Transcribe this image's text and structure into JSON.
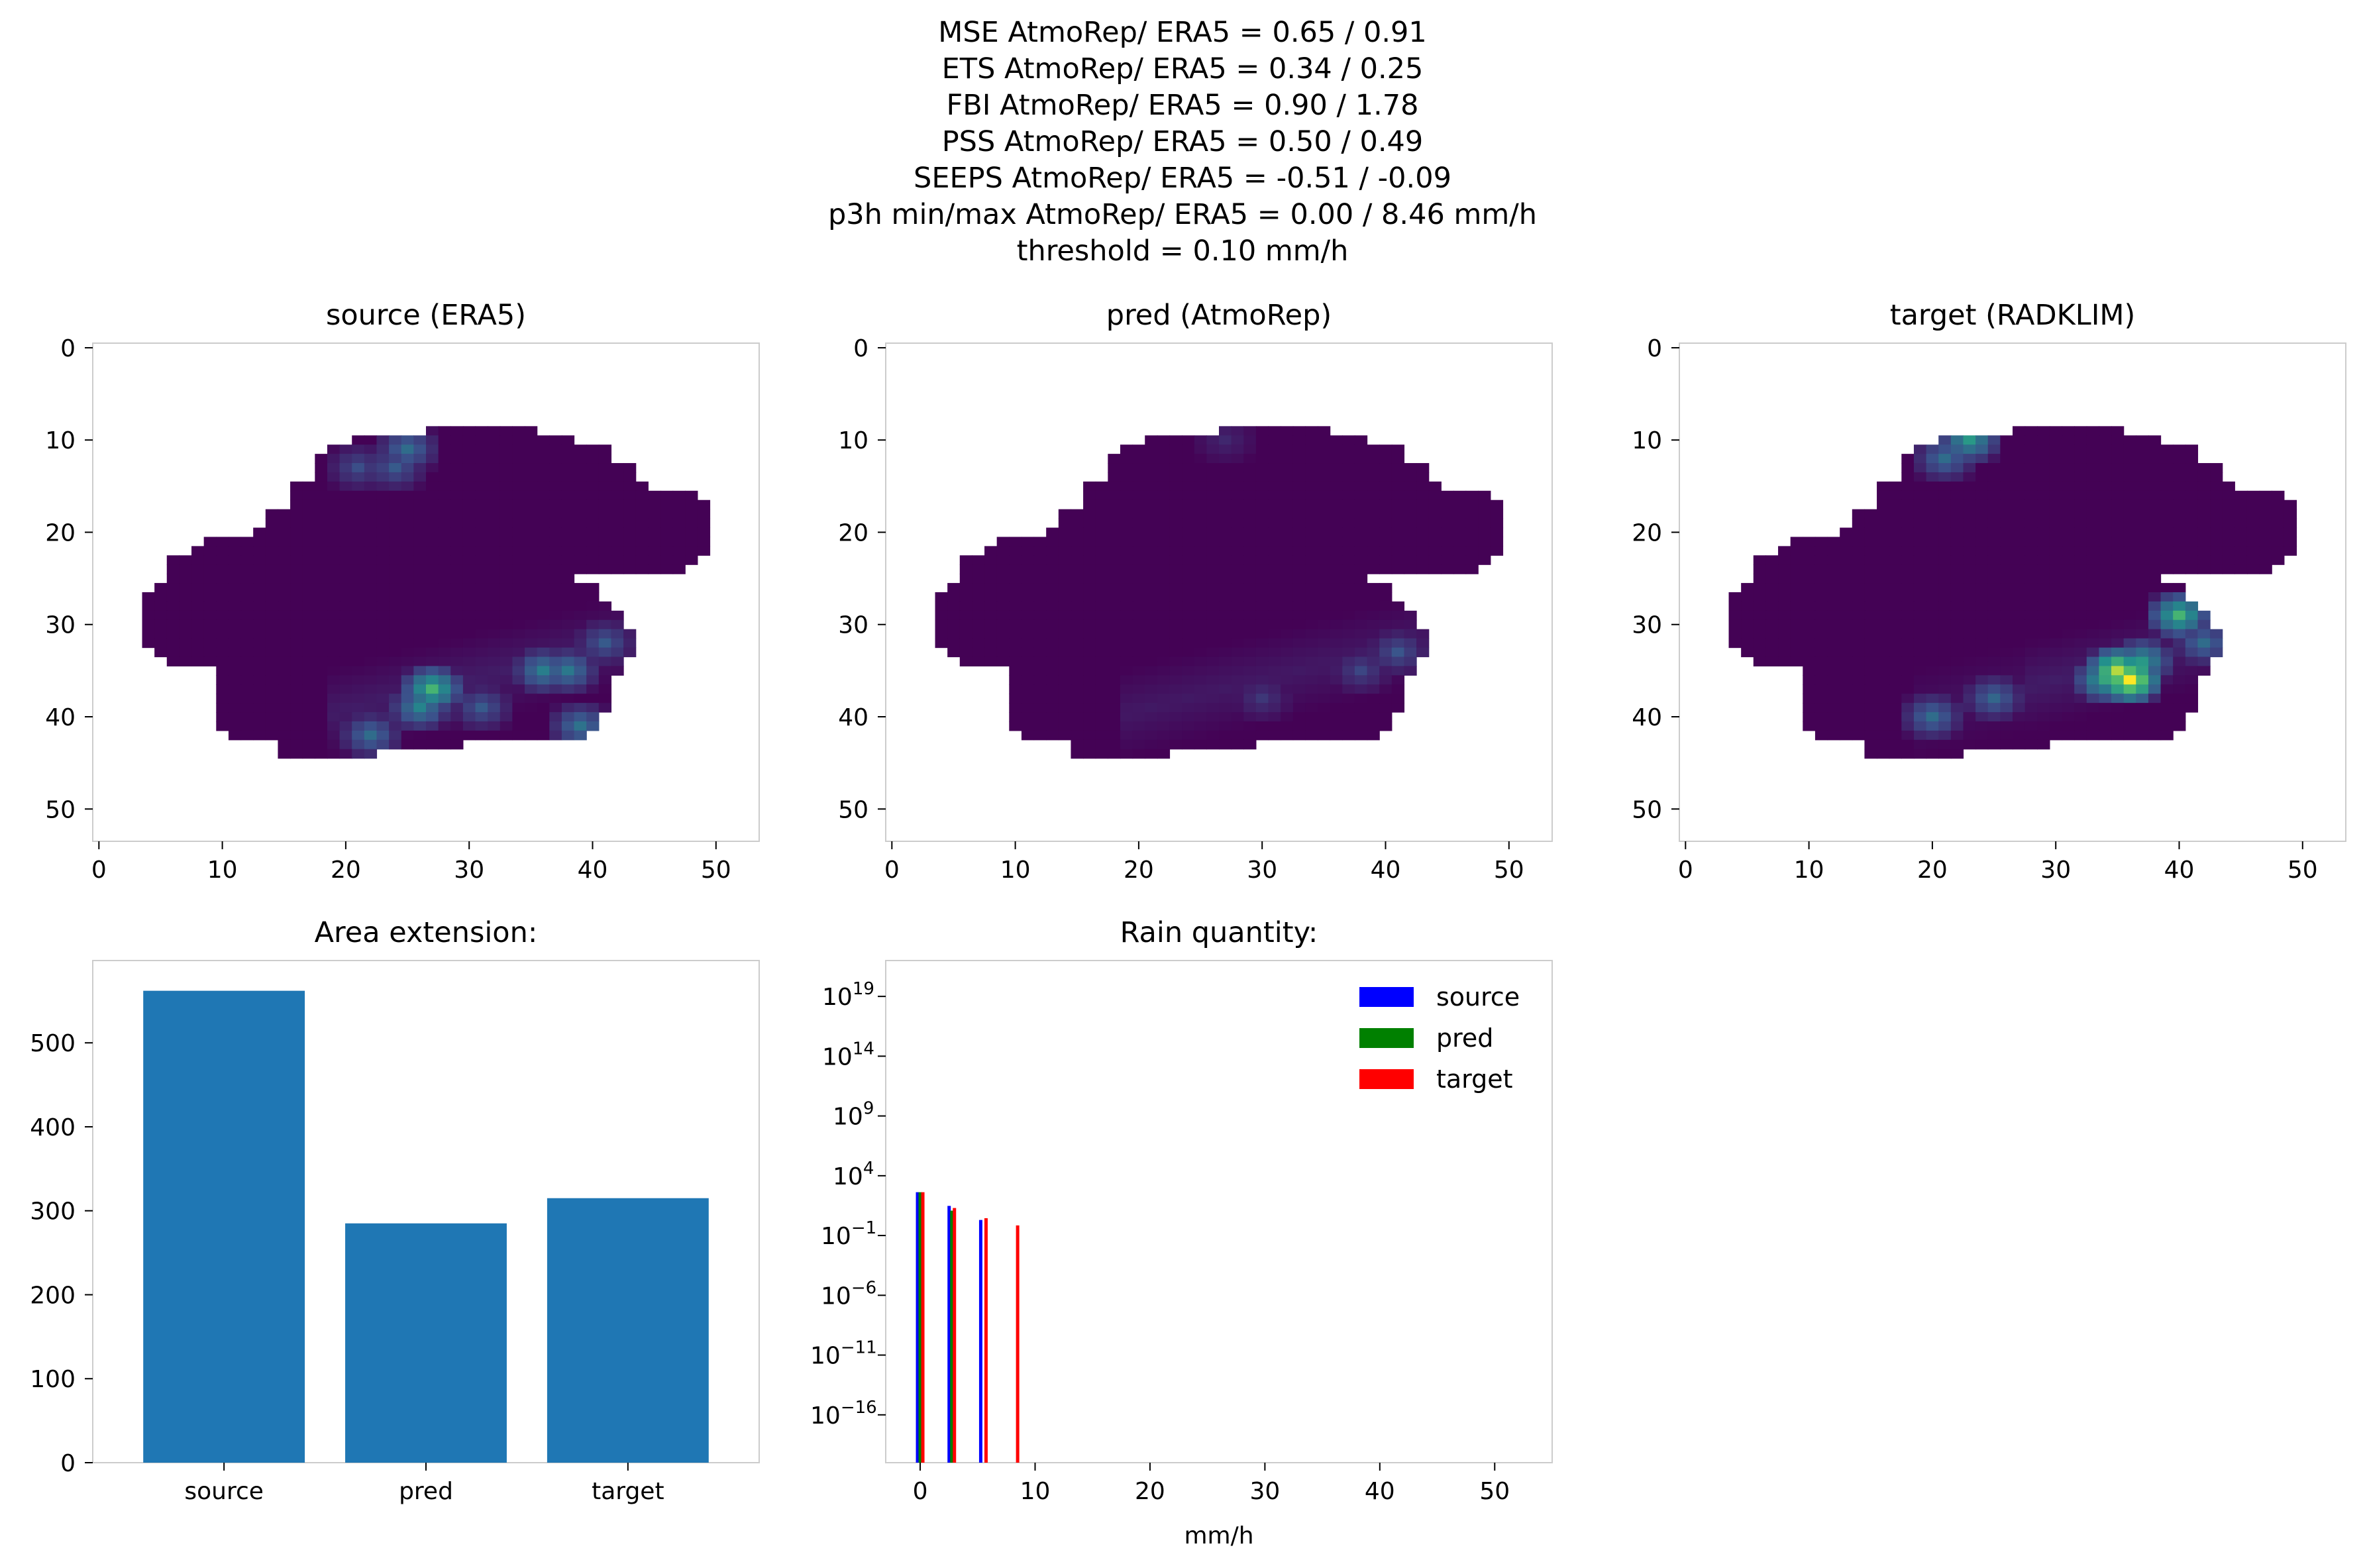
{
  "suptitle": [
    "MSE AtmoRep/ ERA5 = 0.65 / 0.91",
    "ETS AtmoRep/ ERA5 = 0.34 / 0.25",
    "FBI AtmoRep/ ERA5 = 0.90 / 1.78",
    "PSS AtmoRep/ ERA5 = 0.50 / 0.49",
    "SEEPS AtmoRep/ ERA5 = -0.51 / -0.09",
    "p3h min/max AtmoRep/ ERA5 = 0.00 / 8.46 mm/h",
    "threshold = 0.10 mm/h"
  ],
  "colors": {
    "background_cmap_low": "#440154",
    "cmap_mid1": "#3b528b",
    "cmap_mid2": "#21918c",
    "cmap_mid3": "#5ec962",
    "cmap_high": "#fde725",
    "bar": "#1f77b4",
    "source": "#0000ff",
    "pred": "#008000",
    "target": "#ff0000",
    "spine": "#cccccc"
  },
  "chart_data": [
    {
      "type": "heatmap",
      "title": "source (ERA5)",
      "xticks": [
        "0",
        "10",
        "20",
        "30",
        "40",
        "50"
      ],
      "yticks": [
        "0",
        "10",
        "20",
        "30",
        "40",
        "50"
      ],
      "xlim": [
        -0.5,
        53.5
      ],
      "ylim": [
        53.5,
        -0.5
      ],
      "max_value": 8.46,
      "hotspots": [
        {
          "x": 25,
          "y": 11,
          "v": 3.0
        },
        {
          "x": 24,
          "y": 13,
          "v": 2.4
        },
        {
          "x": 21,
          "y": 13,
          "v": 2.0
        },
        {
          "x": 36,
          "y": 35,
          "v": 3.6
        },
        {
          "x": 38,
          "y": 35,
          "v": 3.4
        },
        {
          "x": 27,
          "y": 37,
          "v": 5.5
        },
        {
          "x": 26,
          "y": 39,
          "v": 3.8
        },
        {
          "x": 22,
          "y": 42,
          "v": 3.0
        },
        {
          "x": 39,
          "y": 41,
          "v": 3.2
        },
        {
          "x": 31,
          "y": 39,
          "v": 2.4
        },
        {
          "x": 41,
          "y": 32,
          "v": 2.4
        }
      ]
    },
    {
      "type": "heatmap",
      "title": "pred (AtmoRep)",
      "xticks": [
        "0",
        "10",
        "20",
        "30",
        "40",
        "50"
      ],
      "yticks": [
        "0",
        "10",
        "20",
        "30",
        "40",
        "50"
      ],
      "xlim": [
        -0.5,
        53.5
      ],
      "ylim": [
        53.5,
        -0.5
      ],
      "max_value": 8.46,
      "hotspots": [
        {
          "x": 41,
          "y": 33,
          "v": 2.2
        },
        {
          "x": 38,
          "y": 35,
          "v": 1.8
        },
        {
          "x": 30,
          "y": 38,
          "v": 1.4
        },
        {
          "x": 27,
          "y": 10,
          "v": 1.0
        }
      ]
    },
    {
      "type": "heatmap",
      "title": "target (RADKLIM)",
      "xticks": [
        "0",
        "10",
        "20",
        "30",
        "40",
        "50"
      ],
      "yticks": [
        "0",
        "10",
        "20",
        "30",
        "40",
        "50"
      ],
      "xlim": [
        -0.5,
        53.5
      ],
      "ylim": [
        53.5,
        -0.5
      ],
      "max_value": 8.46,
      "hotspots": [
        {
          "x": 23,
          "y": 10,
          "v": 4.5
        },
        {
          "x": 21,
          "y": 12,
          "v": 3.0
        },
        {
          "x": 40,
          "y": 29,
          "v": 5.5
        },
        {
          "x": 35,
          "y": 35,
          "v": 7.5
        },
        {
          "x": 36,
          "y": 36,
          "v": 8.46
        },
        {
          "x": 37,
          "y": 34,
          "v": 4.5
        },
        {
          "x": 34,
          "y": 36,
          "v": 5.0
        },
        {
          "x": 20,
          "y": 40,
          "v": 3.0
        },
        {
          "x": 42,
          "y": 32,
          "v": 3.0
        },
        {
          "x": 25,
          "y": 38,
          "v": 2.8
        }
      ]
    },
    {
      "type": "bar",
      "title": "Area extension:",
      "categories": [
        "source",
        "pred",
        "target"
      ],
      "values": [
        562,
        285,
        315
      ],
      "ylim": [
        0,
        598
      ],
      "yticks": [
        0,
        100,
        200,
        300,
        400,
        500
      ]
    },
    {
      "type": "bar",
      "title": "Rain quantity:",
      "xlabel": "mm/h",
      "yscale": "log",
      "xlim": [
        -3,
        55
      ],
      "ylim_exp": [
        -20,
        22
      ],
      "xticks": [
        0,
        10,
        20,
        30,
        40,
        50
      ],
      "ytick_exponents": [
        -16,
        -11,
        -6,
        -1,
        4,
        9,
        14,
        19
      ],
      "series": [
        {
          "name": "source",
          "x": [
            0.0,
            2.75,
            5.5
          ],
          "y": [
            420,
            30,
            2
          ]
        },
        {
          "name": "pred",
          "x": [
            0.0,
            2.75
          ],
          "y": [
            420,
            12
          ]
        },
        {
          "name": "target",
          "x": [
            0.0,
            2.75,
            5.5,
            8.25
          ],
          "y": [
            420,
            20,
            2.8,
            0.7
          ]
        }
      ]
    }
  ]
}
